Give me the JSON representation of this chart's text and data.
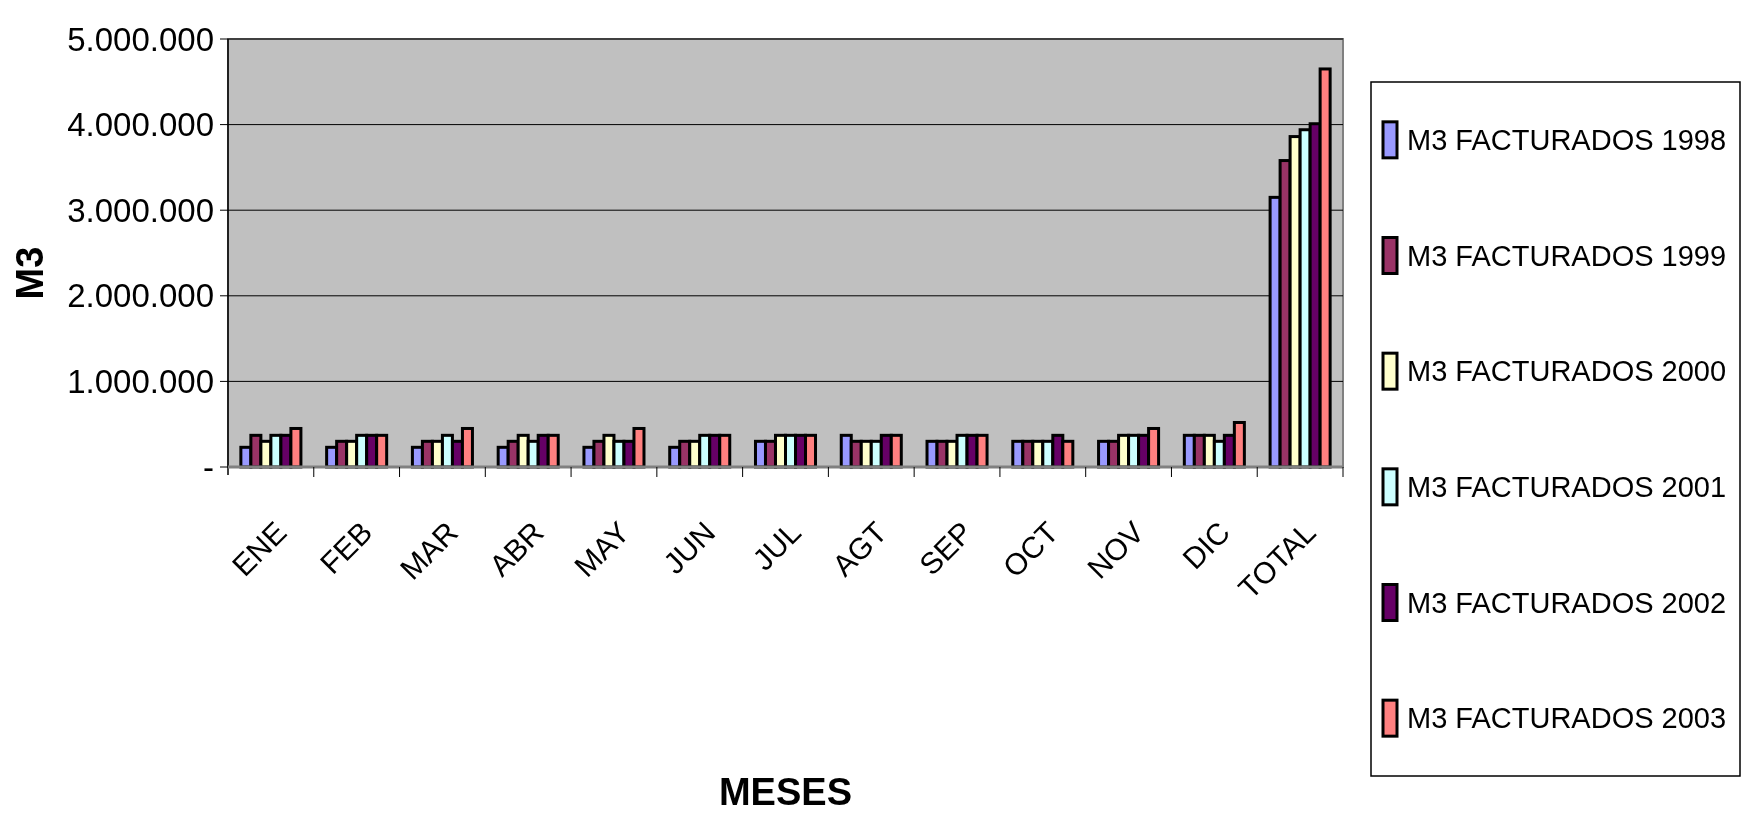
{
  "chart_data": {
    "type": "bar",
    "xlabel": "MESES",
    "ylabel": "M3",
    "categories": [
      "ENE",
      "FEB",
      "MAR",
      "ABR",
      "MAY",
      "JUN",
      "JUL",
      "AGT",
      "SEP",
      "OCT",
      "NOV",
      "DIC",
      "TOTAL"
    ],
    "series": [
      {
        "name": "M3 FACTURADOS 1998",
        "color": "#9999ff",
        "values": [
          230000,
          230000,
          230000,
          230000,
          230000,
          230000,
          300000,
          370000,
          300000,
          300000,
          300000,
          370000,
          3150000
        ]
      },
      {
        "name": "M3 FACTURADOS 1999",
        "color": "#993366",
        "values": [
          370000,
          300000,
          300000,
          300000,
          300000,
          300000,
          300000,
          300000,
          300000,
          300000,
          300000,
          370000,
          3580000
        ]
      },
      {
        "name": "M3 FACTURADOS 2000",
        "color": "#ffffcc",
        "values": [
          300000,
          300000,
          300000,
          370000,
          370000,
          300000,
          370000,
          300000,
          300000,
          300000,
          370000,
          370000,
          3860000
        ]
      },
      {
        "name": "M3 FACTURADOS 2001",
        "color": "#ccffff",
        "values": [
          370000,
          370000,
          370000,
          300000,
          300000,
          370000,
          370000,
          300000,
          370000,
          300000,
          370000,
          300000,
          3940000
        ]
      },
      {
        "name": "M3 FACTURADOS 2002",
        "color": "#660066",
        "values": [
          370000,
          370000,
          300000,
          370000,
          300000,
          370000,
          370000,
          370000,
          370000,
          370000,
          370000,
          370000,
          4010000
        ]
      },
      {
        "name": "M3 FACTURADOS 2003",
        "color": "#ff8080",
        "values": [
          450000,
          370000,
          450000,
          370000,
          450000,
          370000,
          370000,
          370000,
          370000,
          300000,
          450000,
          520000,
          4650000
        ]
      }
    ],
    "ylim": [
      0,
      5000000
    ],
    "yticks": [
      {
        "value": 0,
        "label": "-"
      },
      {
        "value": 1000000,
        "label": "1.000.000"
      },
      {
        "value": 2000000,
        "label": "2.000.000"
      },
      {
        "value": 3000000,
        "label": "3.000.000"
      },
      {
        "value": 4000000,
        "label": "4.000.000"
      },
      {
        "value": 5000000,
        "label": "5.000.000"
      }
    ],
    "grid": "y",
    "legend": "right"
  }
}
